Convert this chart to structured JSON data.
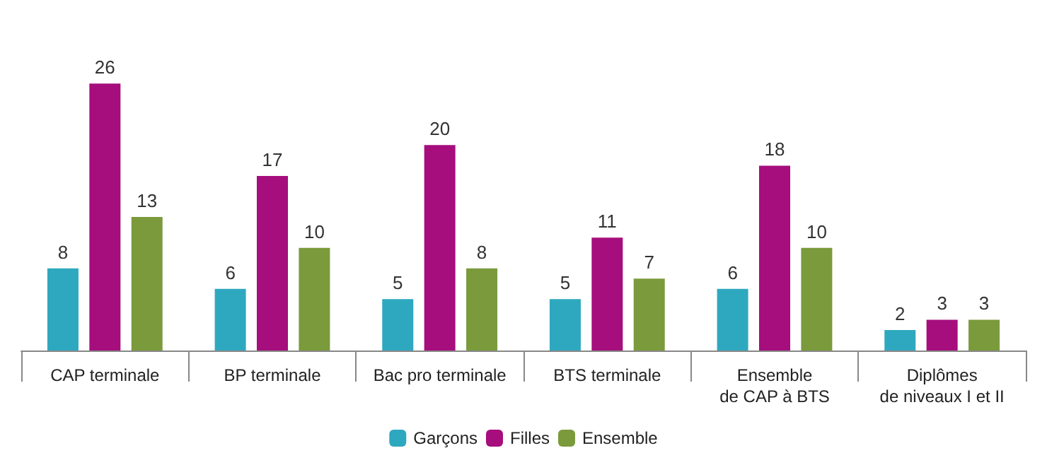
{
  "chart_data": {
    "type": "bar",
    "categories": [
      "CAP terminale",
      "BP terminale",
      "Bac pro terminale",
      "BTS terminale",
      "Ensemble\nde CAP à BTS",
      "Diplômes\nde niveaux I et II"
    ],
    "series": [
      {
        "name": "Garçons",
        "color": "#2ea8bf",
        "values": [
          8,
          6,
          5,
          5,
          6,
          2
        ]
      },
      {
        "name": "Filles",
        "color": "#a50e7c",
        "values": [
          26,
          17,
          20,
          11,
          18,
          3
        ]
      },
      {
        "name": "Ensemble",
        "color": "#7a9a3c",
        "values": [
          13,
          10,
          8,
          7,
          10,
          3
        ]
      }
    ],
    "data_labels": true,
    "legend": "bottom",
    "grid": false
  }
}
